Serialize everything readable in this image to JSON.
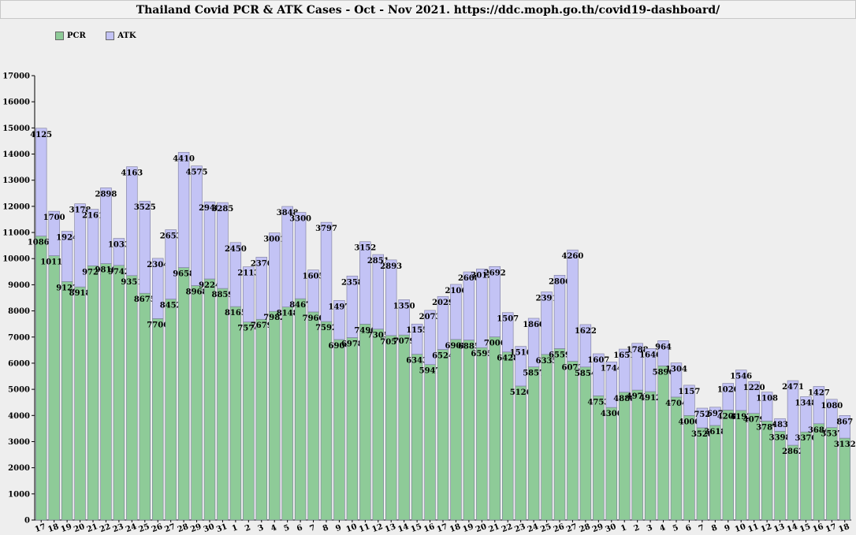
{
  "title": "Thailand Covid PCR & ATK Cases - Oct - Nov 2021. https://ddc.moph.go.th/covid19-dashboard/",
  "colors": {
    "pcr": "#8ecb98",
    "atk": "#c3c3f5",
    "edge": "#7a7a9a",
    "background": "#eeeeee"
  },
  "chart_data": {
    "type": "bar",
    "stacked": true,
    "ylim": [
      0,
      17000
    ],
    "yticks": [
      0,
      1000,
      2000,
      3000,
      4000,
      5000,
      6000,
      7000,
      8000,
      9000,
      10000,
      11000,
      12000,
      13000,
      14000,
      15000,
      16000,
      17000
    ],
    "grid": false,
    "legend_position": "top-left",
    "categories": [
      "17",
      "18",
      "19",
      "20",
      "21",
      "22",
      "23",
      "24",
      "25",
      "26",
      "27",
      "28",
      "29",
      "30",
      "31",
      "1",
      "2",
      "3",
      "4",
      "5",
      "6",
      "7",
      "8",
      "9",
      "10",
      "11",
      "12",
      "13",
      "14",
      "15",
      "16",
      "17",
      "18",
      "19",
      "20",
      "21",
      "22",
      "23",
      "24",
      "25",
      "26",
      "27",
      "28",
      "29",
      "30",
      "1",
      "2",
      "3",
      "4",
      "5",
      "6",
      "7",
      "8",
      "9",
      "10",
      "11",
      "12",
      "13",
      "14",
      "15",
      "16",
      "17",
      "18"
    ],
    "series": [
      {
        "name": "PCR",
        "values": [
          10863,
          10111,
          9122,
          8918,
          9727,
          9810,
          9742,
          9351,
          8675,
          7706,
          8452,
          9658,
          8968,
          9224,
          8859,
          8165,
          7574,
          7679,
          7982,
          8148,
          8467,
          7960,
          7592,
          6904,
          6978,
          7496,
          7305,
          7057,
          7079,
          6343,
          5947,
          6524,
          6908,
          6885,
          6595,
          7006,
          6428,
          5126,
          5857,
          6335,
          6559,
          6073,
          5854,
          4753,
          4306,
          4888,
          4971,
          4912,
          5896,
          4704,
          4000,
          3528,
          3618,
          4208,
          4192,
          4079,
          3787,
          3398,
          2862,
          3370,
          3684,
          3537,
          3132
        ]
      },
      {
        "name": "ATK",
        "values": [
          4125,
          1700,
          1924,
          3178,
          2161,
          2898,
          1033,
          4163,
          3525,
          2304,
          2653,
          4410,
          4575,
          2948,
          3285,
          2450,
          2113,
          2376,
          3001,
          3848,
          3300,
          1605,
          3797,
          1497,
          2358,
          3152,
          2851,
          2893,
          1350,
          1155,
          2073,
          2029,
          2106,
          2608,
          3012,
          2692,
          1507,
          1516,
          1860,
          2391,
          2806,
          4260,
          1622,
          1607,
          1744,
          1651,
          1788,
          1646,
          964,
          1304,
          1157,
          752,
          697,
          1020,
          1546,
          1220,
          1108,
          483,
          2471,
          1348,
          1427,
          1080,
          867
        ]
      }
    ]
  }
}
